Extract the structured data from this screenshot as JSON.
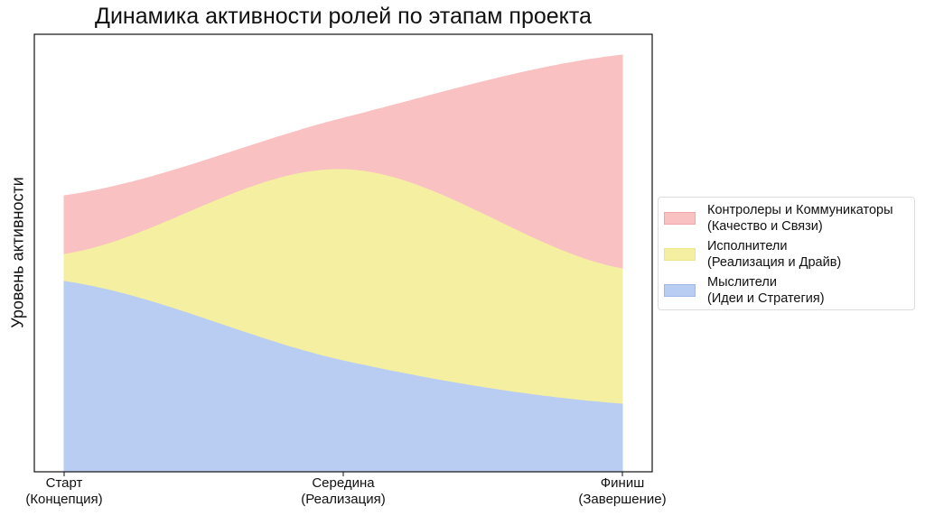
{
  "chart_data": {
    "type": "area",
    "stacked": true,
    "title": "Динамика активности ролей по этапам проекта",
    "xlabel": "",
    "ylabel": "Уровень активности",
    "categories": [
      "Старт\n(Концепция)",
      "Середина\n(Реализация)",
      "Финиш\n(Завершение)"
    ],
    "ylim": [
      0,
      24.25
    ],
    "y_ticks_shown": false,
    "grid": false,
    "legend_position": "right",
    "series": [
      {
        "name": "Мыслители\n(Идеи и Стратегия)",
        "values": [
          10.6,
          6.2,
          3.8
        ],
        "color": "#b9cdf3"
      },
      {
        "name": "Исполнители\n(Реализация и Драйв)",
        "values": [
          1.5,
          10.6,
          7.5
        ],
        "color": "#f5f0a1"
      },
      {
        "name": "Контролеры и Коммуникаторы\n(Качество и Связи)",
        "values": [
          3.2,
          2.8,
          11.8
        ],
        "color": "#f9c1c2"
      }
    ],
    "legend_order": [
      2,
      1,
      0
    ]
  }
}
